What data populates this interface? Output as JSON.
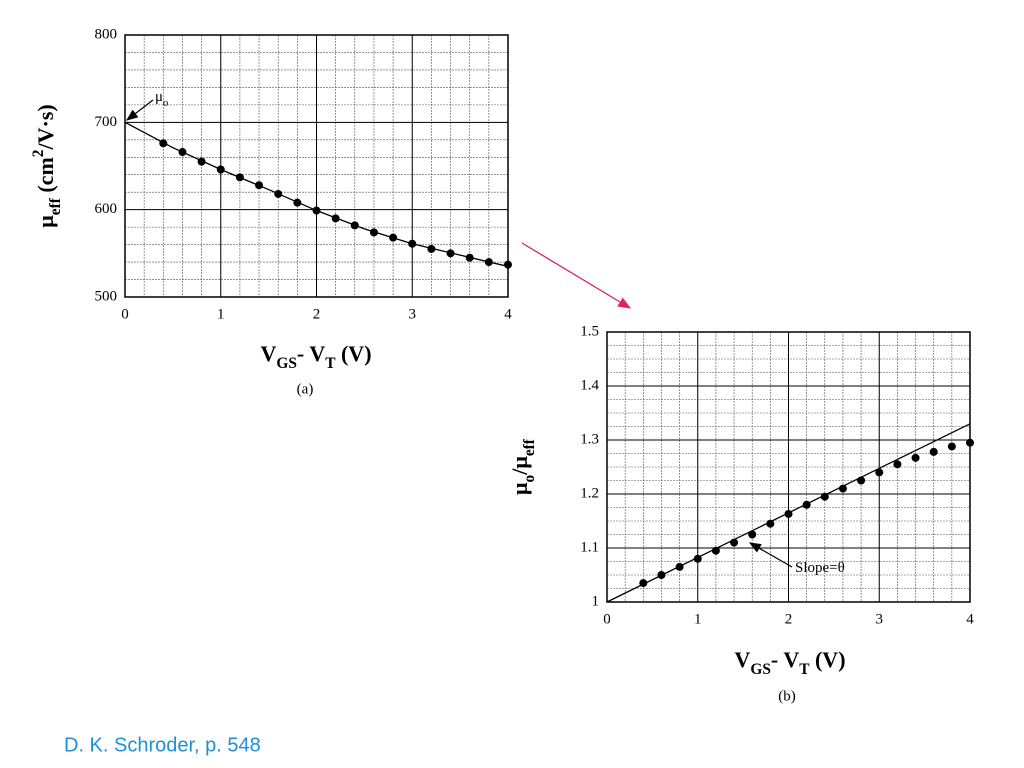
{
  "chart_data": [
    {
      "type": "scatter",
      "x": [
        0.4,
        0.6,
        0.8,
        1.0,
        1.2,
        1.4,
        1.6,
        1.8,
        2.0,
        2.2,
        2.4,
        2.6,
        2.8,
        3.0,
        3.2,
        3.4,
        3.6,
        3.8,
        4.0
      ],
      "values": [
        676,
        666,
        655,
        646,
        637,
        628,
        618,
        608,
        599,
        590,
        582,
        574,
        568,
        561,
        555,
        550,
        545,
        540,
        537
      ],
      "fit": {
        "x": [
          0,
          0.5,
          1,
          1.5,
          2,
          2.5,
          3,
          3.5,
          4
        ],
        "y": [
          700,
          671,
          646,
          623,
          599,
          578,
          561,
          548,
          535
        ]
      },
      "xlim": [
        0,
        4
      ],
      "ylim": [
        500,
        800
      ],
      "xticks": [
        0,
        1,
        2,
        3,
        4
      ],
      "yticks": [
        500,
        600,
        700,
        800
      ],
      "minor_xticks": [
        0,
        0.2,
        0.4,
        0.6,
        0.8,
        1,
        1.2,
        1.4,
        1.6,
        1.8,
        2,
        2.2,
        2.4,
        2.6,
        2.8,
        3,
        3.2,
        3.4,
        3.6,
        3.8,
        4
      ],
      "minor_yticks": [
        500,
        520,
        540,
        560,
        580,
        600,
        620,
        640,
        660,
        680,
        700,
        720,
        740,
        760,
        780,
        800
      ],
      "x_label": [
        {
          "text": "V"
        },
        {
          "text": "GS",
          "shift": "sub"
        },
        {
          "text": "- V"
        },
        {
          "text": "T",
          "shift": "sub"
        },
        {
          "text": " (V)"
        }
      ],
      "y_label": [
        {
          "text": "μ"
        },
        {
          "text": "eff",
          "shift": "sub"
        },
        {
          "text": " (cm"
        },
        {
          "text": "2",
          "shift": "sup"
        },
        {
          "text": "/V·s)"
        }
      ],
      "annotation": [
        {
          "text": "μ"
        },
        {
          "text": "o",
          "shift": "sub"
        }
      ],
      "caption": "(a)",
      "color": "#000000"
    },
    {
      "type": "scatter",
      "x": [
        0.4,
        0.6,
        0.8,
        1.0,
        1.2,
        1.4,
        1.6,
        1.8,
        2.0,
        2.2,
        2.4,
        2.6,
        2.8,
        3.0,
        3.2,
        3.4,
        3.6,
        3.8,
        4.0
      ],
      "values": [
        1.035,
        1.05,
        1.065,
        1.08,
        1.095,
        1.11,
        1.125,
        1.145,
        1.163,
        1.18,
        1.195,
        1.21,
        1.225,
        1.24,
        1.255,
        1.267,
        1.278,
        1.288,
        1.295
      ],
      "fit": {
        "x": [
          0,
          4
        ],
        "y": [
          1.0,
          1.33
        ]
      },
      "xlim": [
        0,
        4
      ],
      "ylim": [
        1,
        1.5
      ],
      "xticks": [
        0,
        1,
        2,
        3,
        4
      ],
      "yticks": [
        1,
        1.1,
        1.2,
        1.3,
        1.4,
        1.5
      ],
      "minor_xticks": [
        0,
        0.2,
        0.4,
        0.6,
        0.8,
        1,
        1.2,
        1.4,
        1.6,
        1.8,
        2,
        2.2,
        2.4,
        2.6,
        2.8,
        3,
        3.2,
        3.4,
        3.6,
        3.8,
        4
      ],
      "minor_yticks": [
        1,
        1.025,
        1.05,
        1.075,
        1.1,
        1.125,
        1.15,
        1.175,
        1.2,
        1.225,
        1.25,
        1.275,
        1.3,
        1.325,
        1.35,
        1.375,
        1.4,
        1.425,
        1.45,
        1.475,
        1.5
      ],
      "x_label": [
        {
          "text": "V"
        },
        {
          "text": "GS",
          "shift": "sub"
        },
        {
          "text": "- V"
        },
        {
          "text": "T",
          "shift": "sub"
        },
        {
          "text": " (V)"
        }
      ],
      "y_label": [
        {
          "text": "μ"
        },
        {
          "text": "o",
          "shift": "sub"
        },
        {
          "text": "/μ"
        },
        {
          "text": "eff",
          "shift": "sub"
        }
      ],
      "annotation": [
        {
          "text": "Slope=θ"
        }
      ],
      "caption": "(b)",
      "color": "#000000"
    }
  ],
  "footer": "D. K. Schroder, p. 548"
}
